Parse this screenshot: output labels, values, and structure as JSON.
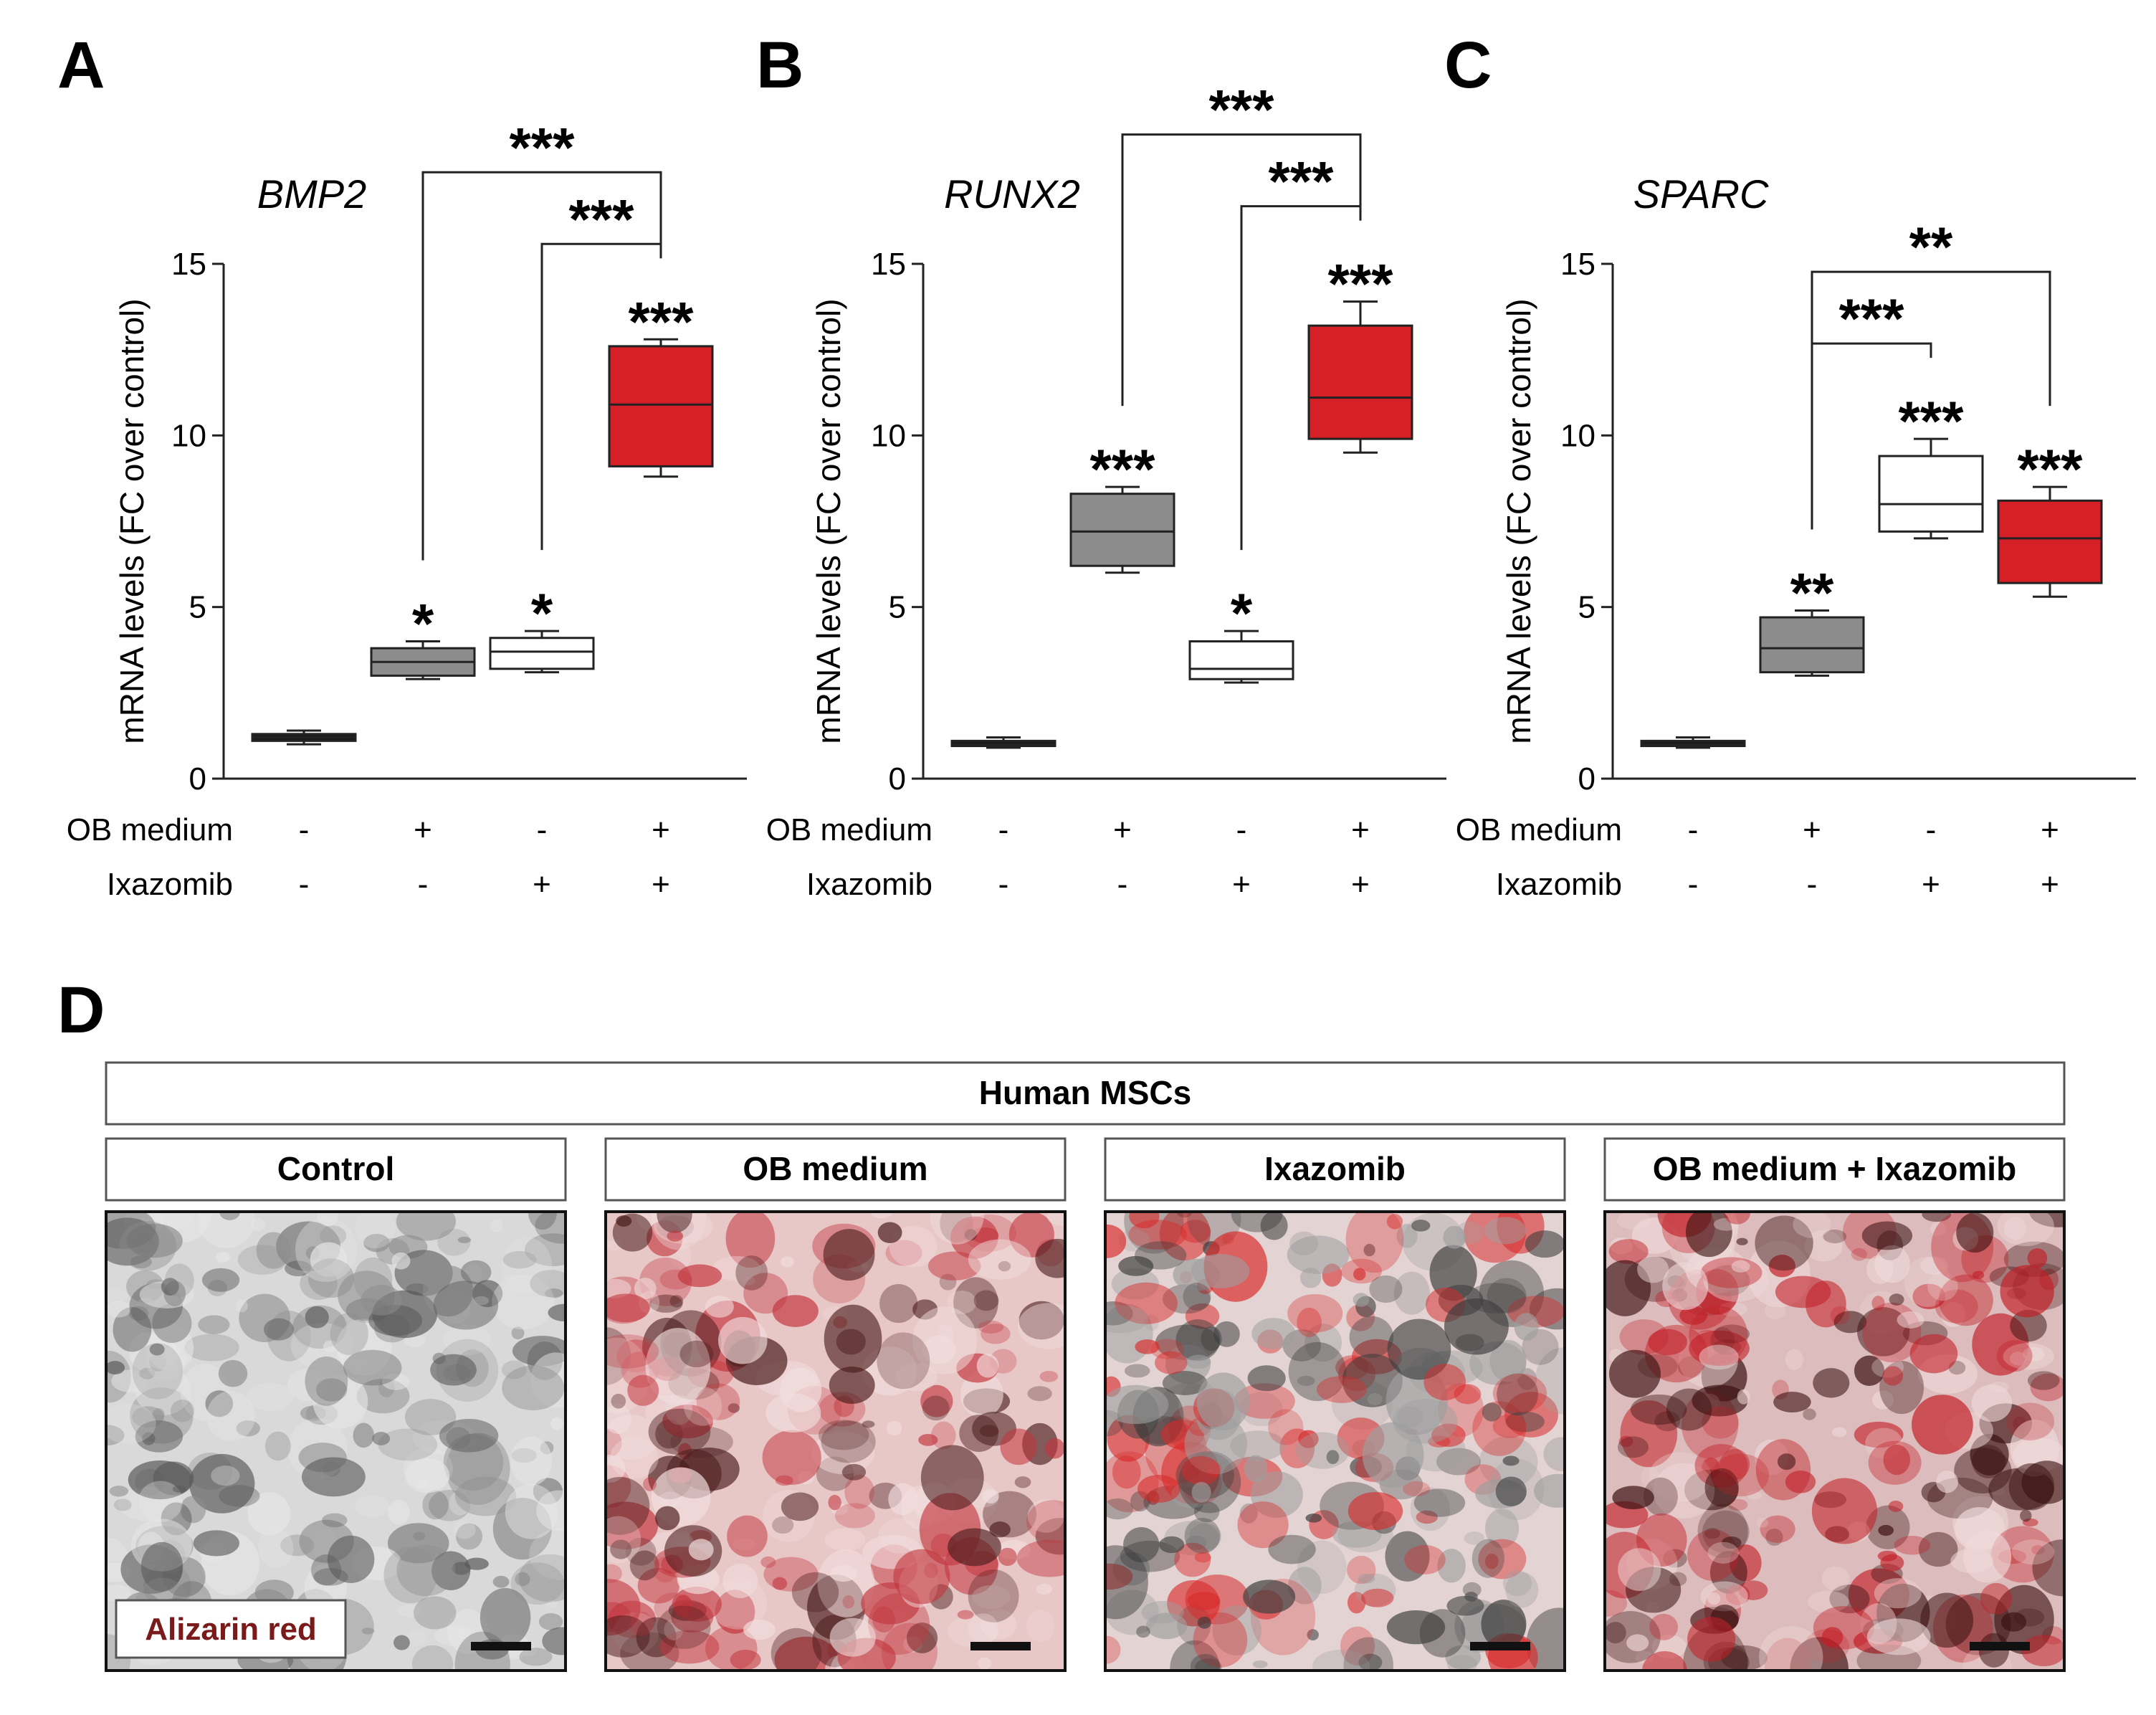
{
  "figure": {
    "panel_D": {
      "letter": "D",
      "header": "Human MSCs",
      "conditions": [
        "Control",
        "OB medium",
        "Ixazomib",
        "OB medium + Ixazomib"
      ],
      "stain_label": "Alizarin red",
      "micrographs": [
        {
          "condition": "Control",
          "stain": "none",
          "colors": [
            "#d9d9d9",
            "#8c8c8c",
            "#5a5a5a",
            "#e6e6e6"
          ]
        },
        {
          "condition": "OB medium",
          "stain": "moderate",
          "colors": [
            "#e8c7c7",
            "#c2353d",
            "#4a1c1c",
            "#f2dede"
          ]
        },
        {
          "condition": "Ixazomib",
          "stain": "moderate",
          "colors": [
            "#e3d3d3",
            "#d92a2a",
            "#3d3d3d",
            "#9e9e9e"
          ]
        },
        {
          "condition": "OB medium + Ixazomib",
          "stain": "strong",
          "colors": [
            "#dcbcbc",
            "#c21f27",
            "#3a1111",
            "#efd9d9"
          ]
        }
      ]
    }
  },
  "chart_data": [
    {
      "panel": "A",
      "type": "box",
      "title": "BMP2",
      "ylabel": "mRNA levels (FC over control)",
      "ylim": [
        0,
        15
      ],
      "yticks": [
        0,
        5,
        10,
        15
      ],
      "row_labels": [
        "OB medium",
        "Ixazomib"
      ],
      "groups": [
        {
          "ob": "-",
          "ixa": "-",
          "min": 1.0,
          "q1": 1.1,
          "median": 1.2,
          "q3": 1.3,
          "max": 1.4,
          "color": "#1a1a1a",
          "sig": ""
        },
        {
          "ob": "+",
          "ixa": "-",
          "min": 2.9,
          "q1": 3.0,
          "median": 3.4,
          "q3": 3.8,
          "max": 4.0,
          "color": "#8c8c8c",
          "sig": "*"
        },
        {
          "ob": "-",
          "ixa": "+",
          "min": 3.1,
          "q1": 3.2,
          "median": 3.7,
          "q3": 4.1,
          "max": 4.3,
          "color": "#ffffff",
          "sig": "*"
        },
        {
          "ob": "+",
          "ixa": "+",
          "min": 8.8,
          "q1": 9.1,
          "median": 10.9,
          "q3": 12.6,
          "max": 12.8,
          "color": "#d71f27",
          "sig": "***"
        }
      ],
      "comparisons": [
        {
          "from": 1,
          "to": 3,
          "label": "***"
        },
        {
          "from": 2,
          "to": 3,
          "label": "***"
        }
      ]
    },
    {
      "panel": "B",
      "type": "box",
      "title": "RUNX2",
      "ylabel": "mRNA levels (FC over control)",
      "ylim": [
        0,
        15
      ],
      "yticks": [
        0,
        5,
        10,
        15
      ],
      "row_labels": [
        "OB medium",
        "Ixazomib"
      ],
      "groups": [
        {
          "ob": "-",
          "ixa": "-",
          "min": 0.9,
          "q1": 0.95,
          "median": 1.0,
          "q3": 1.1,
          "max": 1.2,
          "color": "#1a1a1a",
          "sig": ""
        },
        {
          "ob": "+",
          "ixa": "-",
          "min": 6.0,
          "q1": 6.2,
          "median": 7.2,
          "q3": 8.3,
          "max": 8.5,
          "color": "#8c8c8c",
          "sig": "***"
        },
        {
          "ob": "-",
          "ixa": "+",
          "min": 2.8,
          "q1": 2.9,
          "median": 3.2,
          "q3": 4.0,
          "max": 4.3,
          "color": "#ffffff",
          "sig": "*"
        },
        {
          "ob": "+",
          "ixa": "+",
          "min": 9.5,
          "q1": 9.9,
          "median": 11.1,
          "q3": 13.2,
          "max": 13.9,
          "color": "#d71f27",
          "sig": "***"
        }
      ],
      "comparisons": [
        {
          "from": 1,
          "to": 3,
          "label": "***"
        },
        {
          "from": 2,
          "to": 3,
          "label": "***"
        }
      ]
    },
    {
      "panel": "C",
      "type": "box",
      "title": "SPARC",
      "ylabel": "mRNA levels (FC over control)",
      "ylim": [
        0,
        15
      ],
      "yticks": [
        0,
        5,
        10,
        15
      ],
      "row_labels": [
        "OB medium",
        "Ixazomib"
      ],
      "groups": [
        {
          "ob": "-",
          "ixa": "-",
          "min": 0.9,
          "q1": 0.95,
          "median": 1.0,
          "q3": 1.1,
          "max": 1.2,
          "color": "#1a1a1a",
          "sig": ""
        },
        {
          "ob": "+",
          "ixa": "-",
          "min": 3.0,
          "q1": 3.1,
          "median": 3.8,
          "q3": 4.7,
          "max": 4.9,
          "color": "#8c8c8c",
          "sig": "**"
        },
        {
          "ob": "-",
          "ixa": "+",
          "min": 7.0,
          "q1": 7.2,
          "median": 8.0,
          "q3": 9.4,
          "max": 9.9,
          "color": "#ffffff",
          "sig": "***"
        },
        {
          "ob": "+",
          "ixa": "+",
          "min": 5.3,
          "q1": 5.7,
          "median": 7.0,
          "q3": 8.1,
          "max": 8.5,
          "color": "#d71f27",
          "sig": "***"
        }
      ],
      "comparisons": [
        {
          "from": 1,
          "to": 3,
          "label": "**"
        },
        {
          "from": 1,
          "to": 2,
          "label": "***"
        }
      ]
    }
  ]
}
